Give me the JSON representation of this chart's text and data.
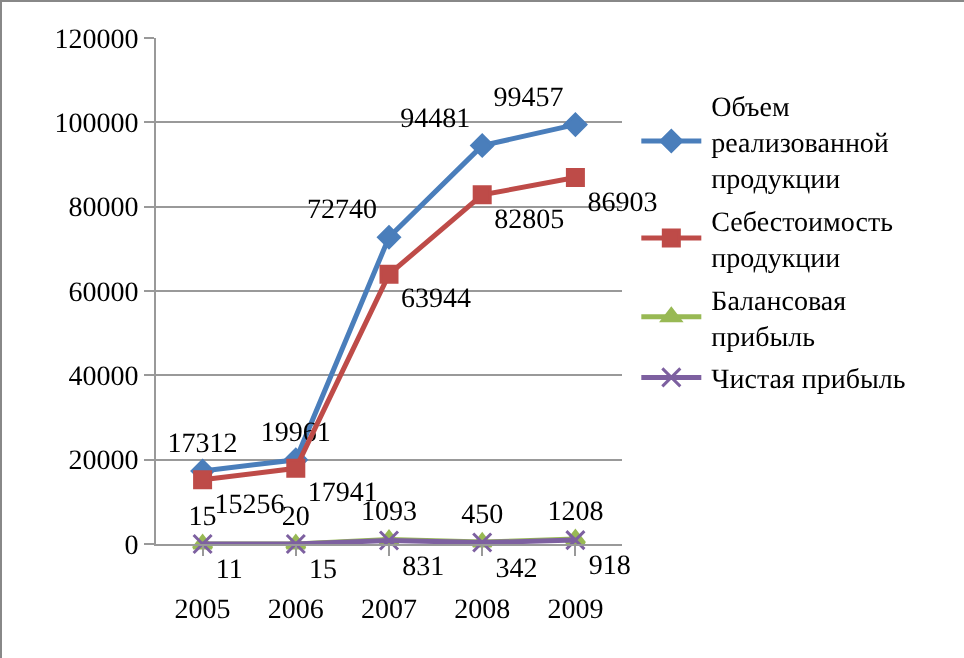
{
  "chart_data": {
    "type": "line",
    "categories": [
      "2005",
      "2006",
      "2007",
      "2008",
      "2009"
    ],
    "ylim": [
      0,
      120000
    ],
    "yticks": [
      0,
      20000,
      40000,
      60000,
      80000,
      100000,
      120000
    ],
    "grid": "y",
    "legend": "right",
    "data_labels": true,
    "line_style": "solid",
    "series": [
      {
        "name": "Объем реализованной продукции",
        "color": "#4a7ebb",
        "marker": "diamond",
        "values": [
          17312,
          19961,
          72740,
          94481,
          99457
        ]
      },
      {
        "name": "Себестоимость продукции",
        "color": "#be4b48",
        "marker": "square",
        "values": [
          15256,
          17941,
          63944,
          82805,
          86903
        ]
      },
      {
        "name": "Балансовая прибыль",
        "color": "#98b954",
        "marker": "triangle",
        "values": [
          15,
          20,
          1093,
          450,
          1208
        ]
      },
      {
        "name": "Чистая прибыль",
        "color": "#7d60a0",
        "marker": "cross",
        "values": [
          11,
          15,
          831,
          342,
          918
        ]
      }
    ]
  }
}
